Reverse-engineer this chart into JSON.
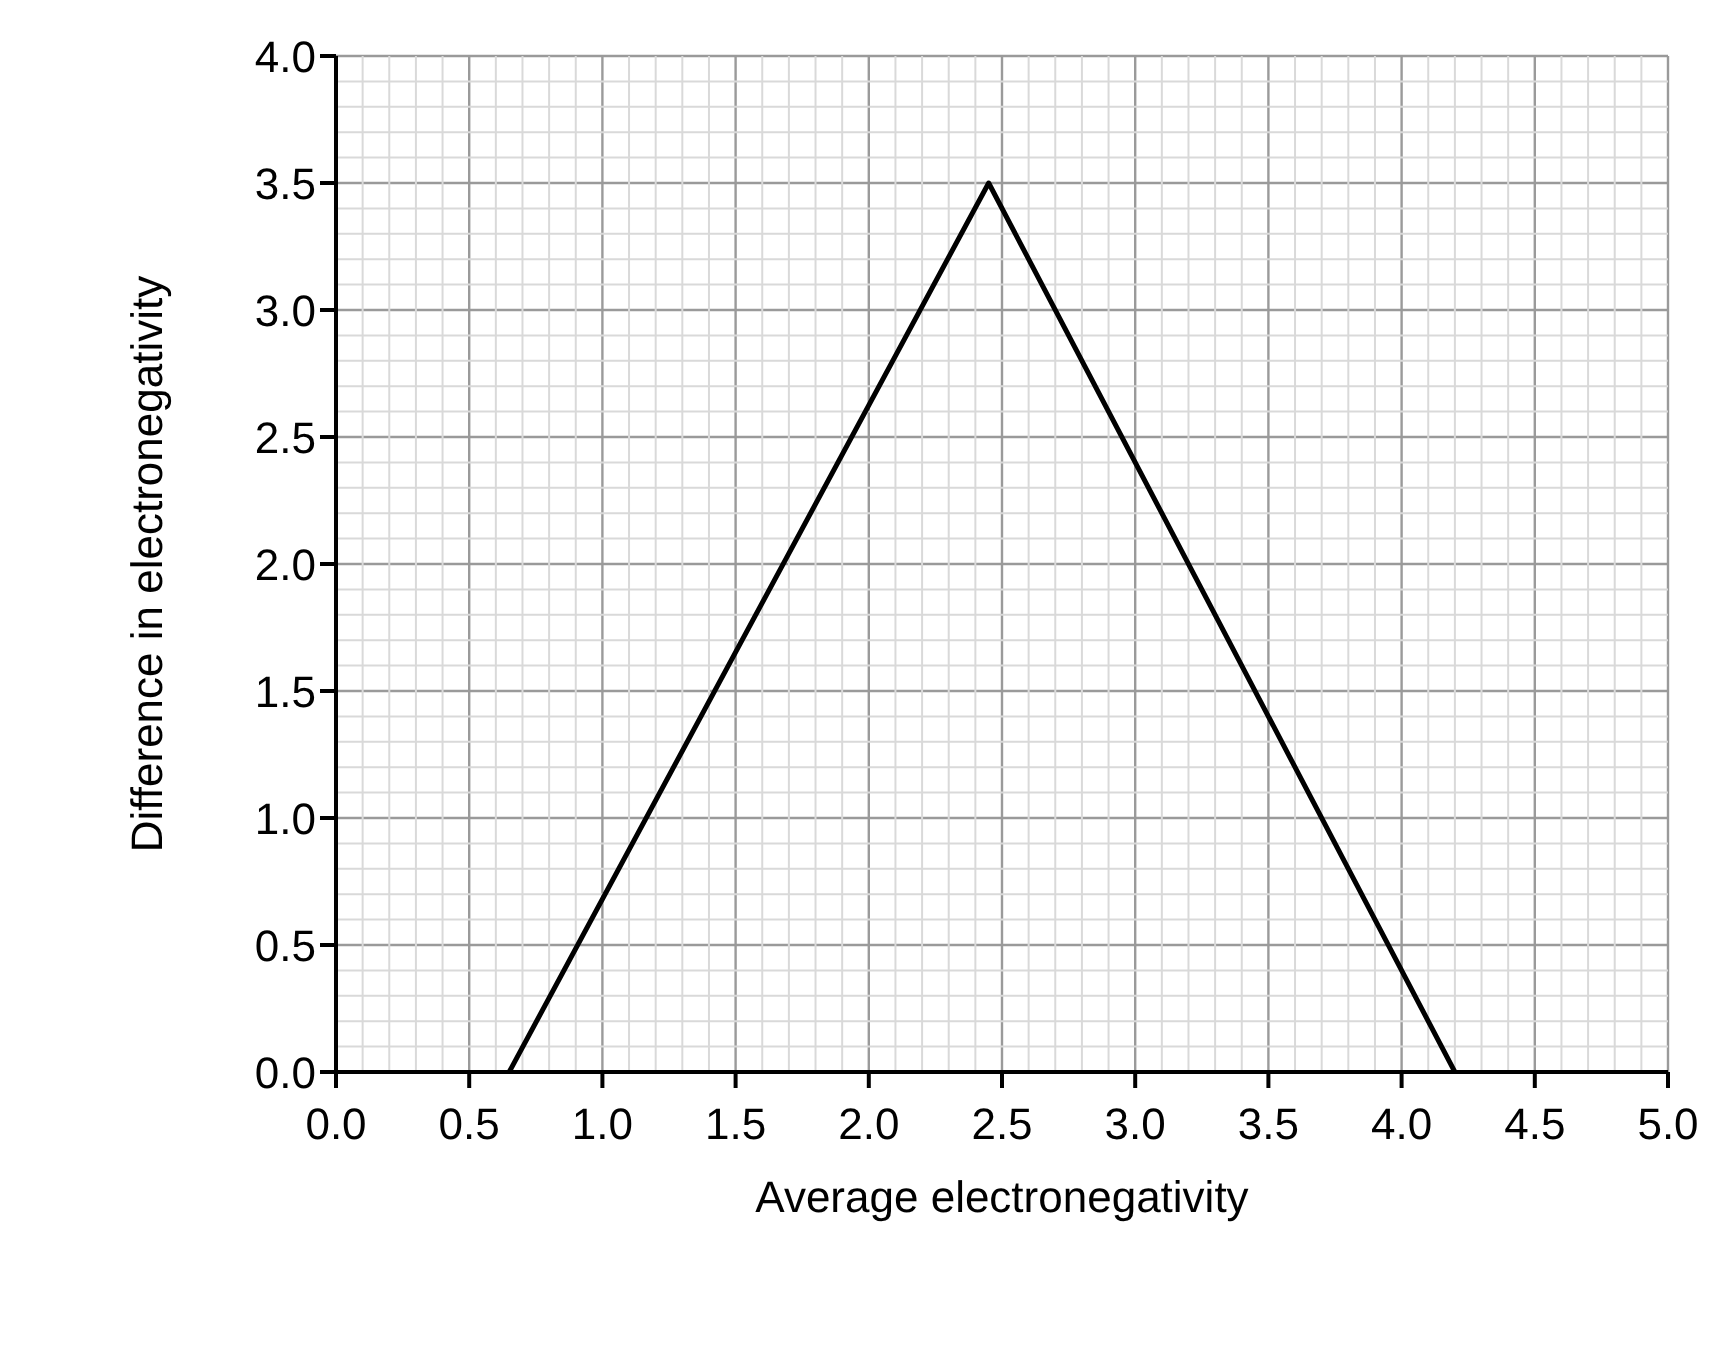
{
  "chart_data": {
    "type": "line",
    "xlabel": "Average electronegativity",
    "ylabel": "Difference in electronegativity",
    "x": [
      0.65,
      2.45,
      4.2
    ],
    "series": [
      {
        "color": "#000000",
        "values": [
          0,
          3.5,
          0
        ]
      }
    ],
    "xlim": [
      0,
      5
    ],
    "xticks": [
      {
        "value": 0,
        "label": "0.0"
      },
      {
        "value": 0.5,
        "label": "0.5"
      },
      {
        "value": 1,
        "label": "1.0"
      },
      {
        "value": 1.5,
        "label": "1.5"
      },
      {
        "value": 2,
        "label": "2.0"
      },
      {
        "value": 2.5,
        "label": "2.5"
      },
      {
        "value": 3,
        "label": "3.0"
      },
      {
        "value": 3.5,
        "label": "3.5"
      },
      {
        "value": 4,
        "label": "4.0"
      },
      {
        "value": 4.5,
        "label": "4.5"
      },
      {
        "value": 5,
        "label": "5.0"
      }
    ],
    "ylim": [
      0,
      4
    ],
    "yticks": [
      {
        "value": 0,
        "label": "0.0"
      },
      {
        "value": 0.5,
        "label": "0.5"
      },
      {
        "value": 1,
        "label": "1.0"
      },
      {
        "value": 1.5,
        "label": "1.5"
      },
      {
        "value": 2,
        "label": "2.0"
      },
      {
        "value": 2.5,
        "label": "2.5"
      },
      {
        "value": 3,
        "label": "3.0"
      },
      {
        "value": 3.5,
        "label": "3.5"
      },
      {
        "value": 4,
        "label": "4.0"
      }
    ],
    "grid": true,
    "marker": "none",
    "line_style": "solid"
  }
}
